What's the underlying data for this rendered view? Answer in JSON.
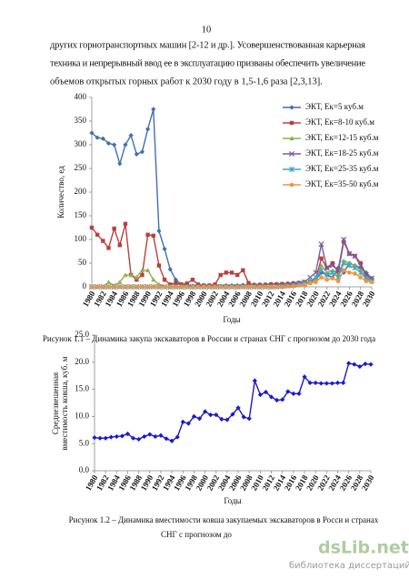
{
  "page_number": "10",
  "paragraph": [
    "других горнотранспортных машин [2-12 и др.]. Усовершенствованная карьерная",
    "техника и непрерывный ввод ее в эксплуатацию призваны обеспечить увеличение",
    "объемов открытых горных работ к 2030 году в 1,5-1,6 раза [2,3,13]."
  ],
  "chart_data": [
    {
      "type": "line",
      "ylabel": "Количество, ед",
      "xlabel": "Годы",
      "caption": [
        "Рисунок 1.1 – Динамика закупа экскаваторов в России и странах СНГ с прогнозом до 2030 года"
      ],
      "x": [
        1980,
        1981,
        1982,
        1983,
        1984,
        1985,
        1986,
        1987,
        1988,
        1989,
        1990,
        1991,
        1992,
        1993,
        1994,
        1995,
        1996,
        1997,
        1998,
        1999,
        2000,
        2001,
        2002,
        2003,
        2004,
        2005,
        2006,
        2007,
        2008,
        2009,
        2010,
        2011,
        2012,
        2013,
        2014,
        2015,
        2016,
        2017,
        2018,
        2019,
        2020,
        2021,
        2022,
        2023,
        2024,
        2025,
        2026,
        2027,
        2028,
        2029,
        2030
      ],
      "xlim": [
        1980,
        2030
      ],
      "xticks": [
        1980,
        1982,
        1984,
        1986,
        1988,
        1990,
        1992,
        1994,
        1996,
        1998,
        2000,
        2002,
        2004,
        2006,
        2008,
        2010,
        2012,
        2014,
        2016,
        2018,
        2020,
        2022,
        2024,
        2026,
        2028,
        2030
      ],
      "ylim": [
        0,
        400
      ],
      "yticks": [
        0,
        50,
        100,
        150,
        200,
        250,
        300,
        350,
        400
      ],
      "grid": false,
      "legend": "upper right",
      "series": [
        {
          "name": "ЭКТ, Ек=5 куб.м",
          "color": "#3f6fb0",
          "marker": "diamond",
          "values": [
            325,
            315,
            313,
            303,
            300,
            260,
            300,
            320,
            280,
            285,
            333,
            375,
            118,
            80,
            37,
            15,
            5,
            3,
            2,
            2,
            2,
            2,
            2,
            2,
            3,
            3,
            3,
            4,
            4,
            5,
            5,
            5,
            6,
            6,
            6,
            7,
            8,
            9,
            10,
            10,
            15,
            30,
            25,
            20,
            40,
            30,
            50,
            45,
            40,
            30,
            18
          ]
        },
        {
          "name": "ЭКТ, Ек=8-10 куб.м",
          "color": "#b8413d",
          "marker": "square",
          "values": [
            125,
            110,
            97,
            82,
            123,
            88,
            133,
            25,
            15,
            25,
            110,
            108,
            45,
            15,
            5,
            8,
            5,
            7,
            15,
            5,
            3,
            3,
            5,
            25,
            30,
            30,
            25,
            35,
            8,
            3,
            4,
            4,
            5,
            5,
            6,
            6,
            7,
            8,
            10,
            10,
            15,
            60,
            40,
            50,
            30,
            95,
            70,
            65,
            50,
            25,
            15
          ]
        },
        {
          "name": "ЭКТ, Ек=12-15 куб.м",
          "color": "#8db04a",
          "marker": "triangle",
          "values": [
            0,
            0,
            0,
            10,
            3,
            10,
            25,
            25,
            20,
            35,
            35,
            15,
            5,
            0,
            0,
            0,
            0,
            0,
            0,
            0,
            0,
            0,
            0,
            0,
            0,
            0,
            0,
            0,
            0,
            0,
            0,
            0,
            0,
            0,
            1,
            1,
            2,
            3,
            5,
            8,
            15,
            45,
            30,
            35,
            25,
            55,
            50,
            45,
            35,
            20,
            15
          ]
        },
        {
          "name": "ЭКТ, Ек=18-25 куб.м",
          "color": "#7a5ba0",
          "marker": "x",
          "values": [
            0,
            0,
            0,
            0,
            0,
            0,
            0,
            0,
            0,
            0,
            0,
            0,
            0,
            0,
            0,
            0,
            0,
            0,
            0,
            0,
            0,
            0,
            0,
            0,
            0,
            0,
            0,
            0,
            0,
            0,
            0,
            0,
            0,
            1,
            2,
            3,
            5,
            7,
            10,
            20,
            30,
            90,
            40,
            45,
            35,
            100,
            70,
            65,
            45,
            25,
            18
          ]
        },
        {
          "name": "ЭКТ, Ек=25-35 куб.м",
          "color": "#3fa6c0",
          "marker": "star",
          "values": [
            0,
            0,
            0,
            0,
            0,
            0,
            0,
            0,
            0,
            0,
            0,
            0,
            0,
            0,
            0,
            0,
            0,
            0,
            0,
            0,
            0,
            0,
            0,
            0,
            0,
            0,
            0,
            0,
            0,
            0,
            0,
            0,
            0,
            0,
            1,
            2,
            3,
            5,
            7,
            12,
            20,
            35,
            25,
            30,
            20,
            50,
            45,
            40,
            30,
            18,
            12
          ]
        },
        {
          "name": "ЭКТ, Ек=35-50 куб.м",
          "color": "#ee9440",
          "marker": "circle",
          "values": [
            0,
            0,
            0,
            0,
            0,
            0,
            0,
            0,
            0,
            0,
            0,
            0,
            0,
            0,
            0,
            0,
            0,
            0,
            0,
            0,
            0,
            0,
            0,
            0,
            0,
            0,
            0,
            0,
            0,
            0,
            0,
            0,
            0,
            0,
            0,
            1,
            2,
            3,
            5,
            8,
            10,
            20,
            15,
            18,
            12,
            35,
            30,
            28,
            20,
            12,
            10
          ]
        }
      ]
    },
    {
      "type": "line",
      "ylabel": [
        "Среднезвешенная",
        "вместимость ковша, куб. м"
      ],
      "xlabel": "Годы",
      "caption": [
        "Рисунок 1.2 – Динамика вместимости ковша закупаемых экскаваторов в Росси и странах",
        "СНГ с прогнозом до"
      ],
      "x": [
        1980,
        1981,
        1982,
        1983,
        1984,
        1985,
        1986,
        1987,
        1988,
        1989,
        1990,
        1991,
        1992,
        1993,
        1994,
        1995,
        1996,
        1997,
        1998,
        1999,
        2000,
        2001,
        2002,
        2003,
        2004,
        2005,
        2006,
        2007,
        2008,
        2009,
        2010,
        2011,
        2012,
        2013,
        2014,
        2015,
        2016,
        2017,
        2018,
        2019,
        2020,
        2021,
        2022,
        2023,
        2024,
        2025,
        2026,
        2027,
        2028,
        2029,
        2030
      ],
      "xlim": [
        1980,
        2030
      ],
      "xticks": [
        1980,
        1982,
        1984,
        1986,
        1988,
        1990,
        1992,
        1994,
        1996,
        1998,
        2000,
        2002,
        2004,
        2006,
        2008,
        2010,
        2012,
        2014,
        2016,
        2018,
        2020,
        2022,
        2024,
        2026,
        2028,
        2030
      ],
      "ylim": [
        0,
        25
      ],
      "yticks": [
        {
          "value": 0,
          "label": "0.0"
        },
        {
          "value": 5,
          "label": "5.0"
        },
        {
          "value": 10,
          "label": "10.0"
        },
        {
          "value": 15,
          "label": "15.0"
        },
        {
          "value": 20,
          "label": "20.0"
        },
        {
          "value": 25,
          "label": "25.0"
        }
      ],
      "grid": false,
      "series": [
        {
          "color": "#1a1ad0",
          "marker": "diamond",
          "values": [
            6.1,
            6.0,
            6.0,
            6.2,
            6.3,
            6.4,
            6.8,
            6.0,
            5.8,
            6.3,
            6.7,
            6.3,
            6.5,
            5.9,
            5.5,
            6.2,
            9.0,
            8.7,
            10.0,
            9.6,
            10.9,
            10.3,
            10.3,
            9.5,
            9.4,
            10.4,
            11.6,
            9.9,
            9.6,
            16.6,
            14.0,
            14.5,
            13.6,
            13.0,
            13.1,
            14.6,
            14.2,
            14.2,
            17.3,
            16.2,
            16.2,
            16.1,
            16.1,
            16.1,
            16.2,
            16.2,
            19.8,
            19.6,
            19.2,
            19.7,
            19.6
          ]
        }
      ]
    }
  ],
  "watermark": {
    "site": "dsLib.net",
    "tagline": "библиотека диссертаций"
  }
}
